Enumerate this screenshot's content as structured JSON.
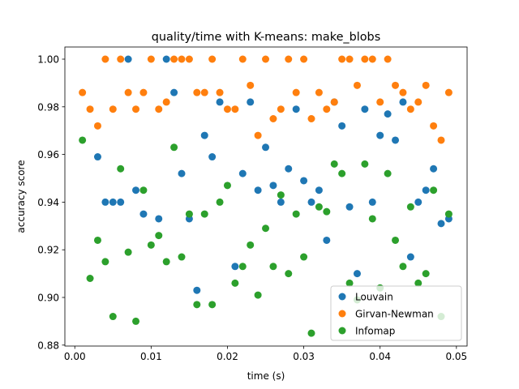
{
  "chart_data": {
    "type": "scatter",
    "title": "quality/time with K-means: make_blobs",
    "xlabel": "time (s)",
    "ylabel": "accuracy score",
    "xlim": [
      -0.0013,
      0.0514
    ],
    "ylim": [
      0.8796,
      1.0051
    ],
    "x_ticks": [
      0.0,
      0.01,
      0.02,
      0.03,
      0.04,
      0.05
    ],
    "x_tick_labels": [
      "0.00",
      "0.01",
      "0.02",
      "0.03",
      "0.04",
      "0.05"
    ],
    "y_ticks": [
      0.88,
      0.9,
      0.92,
      0.94,
      0.96,
      0.98,
      1.0
    ],
    "y_tick_labels": [
      "0.88",
      "0.90",
      "0.92",
      "0.94",
      "0.96",
      "0.98",
      "1.00"
    ],
    "grid": false,
    "legend_position": "lower-right",
    "series": [
      {
        "name": "Louvain",
        "color": "#1f77b4",
        "points": [
          [
            0.003,
            0.959
          ],
          [
            0.004,
            0.94
          ],
          [
            0.005,
            0.94
          ],
          [
            0.006,
            0.94
          ],
          [
            0.007,
            1.0
          ],
          [
            0.008,
            0.945
          ],
          [
            0.009,
            0.935
          ],
          [
            0.011,
            0.933
          ],
          [
            0.012,
            1.0
          ],
          [
            0.013,
            0.986
          ],
          [
            0.014,
            0.952
          ],
          [
            0.015,
            0.933
          ],
          [
            0.016,
            0.903
          ],
          [
            0.017,
            0.968
          ],
          [
            0.018,
            0.959
          ],
          [
            0.019,
            0.982
          ],
          [
            0.021,
            0.913
          ],
          [
            0.022,
            0.952
          ],
          [
            0.023,
            0.982
          ],
          [
            0.024,
            0.945
          ],
          [
            0.025,
            0.963
          ],
          [
            0.026,
            0.947
          ],
          [
            0.027,
            0.94
          ],
          [
            0.028,
            0.954
          ],
          [
            0.029,
            0.979
          ],
          [
            0.03,
            0.949
          ],
          [
            0.031,
            0.94
          ],
          [
            0.032,
            0.945
          ],
          [
            0.033,
            0.924
          ],
          [
            0.034,
            0.982
          ],
          [
            0.035,
            0.972
          ],
          [
            0.036,
            0.938
          ],
          [
            0.037,
            0.91
          ],
          [
            0.038,
            0.979
          ],
          [
            0.039,
            0.94
          ],
          [
            0.04,
            0.968
          ],
          [
            0.041,
            0.977
          ],
          [
            0.042,
            0.966
          ],
          [
            0.043,
            0.982
          ],
          [
            0.044,
            0.917
          ],
          [
            0.045,
            0.94
          ],
          [
            0.046,
            0.945
          ],
          [
            0.047,
            0.954
          ],
          [
            0.048,
            0.931
          ],
          [
            0.049,
            0.933
          ]
        ]
      },
      {
        "name": "Girvan-Newman",
        "color": "#ff7f0e",
        "points": [
          [
            0.001,
            0.986
          ],
          [
            0.002,
            0.979
          ],
          [
            0.003,
            0.972
          ],
          [
            0.004,
            1.0
          ],
          [
            0.005,
            0.979
          ],
          [
            0.006,
            1.0
          ],
          [
            0.007,
            0.986
          ],
          [
            0.008,
            0.979
          ],
          [
            0.009,
            0.986
          ],
          [
            0.01,
            1.0
          ],
          [
            0.011,
            0.979
          ],
          [
            0.012,
            0.982
          ],
          [
            0.013,
            1.0
          ],
          [
            0.014,
            1.0
          ],
          [
            0.015,
            1.0
          ],
          [
            0.016,
            0.986
          ],
          [
            0.017,
            0.986
          ],
          [
            0.018,
            1.0
          ],
          [
            0.019,
            0.986
          ],
          [
            0.02,
            0.979
          ],
          [
            0.021,
            0.979
          ],
          [
            0.022,
            1.0
          ],
          [
            0.023,
            0.989
          ],
          [
            0.024,
            0.968
          ],
          [
            0.025,
            1.0
          ],
          [
            0.026,
            0.975
          ],
          [
            0.027,
            0.979
          ],
          [
            0.028,
            1.0
          ],
          [
            0.029,
            0.986
          ],
          [
            0.03,
            1.0
          ],
          [
            0.031,
            0.975
          ],
          [
            0.032,
            0.986
          ],
          [
            0.033,
            0.979
          ],
          [
            0.034,
            0.982
          ],
          [
            0.035,
            1.0
          ],
          [
            0.036,
            1.0
          ],
          [
            0.037,
            0.989
          ],
          [
            0.038,
            1.0
          ],
          [
            0.039,
            1.0
          ],
          [
            0.04,
            0.982
          ],
          [
            0.041,
            1.0
          ],
          [
            0.042,
            0.989
          ],
          [
            0.043,
            0.986
          ],
          [
            0.044,
            0.979
          ],
          [
            0.045,
            0.982
          ],
          [
            0.046,
            0.989
          ],
          [
            0.047,
            0.972
          ],
          [
            0.048,
            0.966
          ],
          [
            0.049,
            0.986
          ]
        ]
      },
      {
        "name": "Infomap",
        "color": "#2ca02c",
        "points": [
          [
            0.001,
            0.966
          ],
          [
            0.002,
            0.908
          ],
          [
            0.003,
            0.924
          ],
          [
            0.004,
            0.915
          ],
          [
            0.005,
            0.892
          ],
          [
            0.006,
            0.954
          ],
          [
            0.007,
            0.919
          ],
          [
            0.008,
            0.89
          ],
          [
            0.009,
            0.945
          ],
          [
            0.01,
            0.922
          ],
          [
            0.011,
            0.926
          ],
          [
            0.012,
            0.915
          ],
          [
            0.013,
            0.963
          ],
          [
            0.014,
            0.917
          ],
          [
            0.015,
            0.935
          ],
          [
            0.016,
            0.897
          ],
          [
            0.017,
            0.935
          ],
          [
            0.018,
            0.897
          ],
          [
            0.019,
            0.94
          ],
          [
            0.02,
            0.947
          ],
          [
            0.021,
            0.906
          ],
          [
            0.022,
            0.913
          ],
          [
            0.023,
            0.922
          ],
          [
            0.024,
            0.901
          ],
          [
            0.025,
            0.929
          ],
          [
            0.026,
            0.913
          ],
          [
            0.027,
            0.943
          ],
          [
            0.028,
            0.91
          ],
          [
            0.029,
            0.935
          ],
          [
            0.03,
            0.917
          ],
          [
            0.031,
            0.885
          ],
          [
            0.032,
            0.938
          ],
          [
            0.033,
            0.936
          ],
          [
            0.034,
            0.956
          ],
          [
            0.035,
            0.952
          ],
          [
            0.036,
            0.906
          ],
          [
            0.037,
            0.899
          ],
          [
            0.038,
            0.956
          ],
          [
            0.039,
            0.933
          ],
          [
            0.04,
            0.904
          ],
          [
            0.041,
            0.952
          ],
          [
            0.042,
            0.924
          ],
          [
            0.043,
            0.913
          ],
          [
            0.044,
            0.938
          ],
          [
            0.045,
            0.906
          ],
          [
            0.046,
            0.91
          ],
          [
            0.047,
            0.945
          ],
          [
            0.048,
            0.892
          ],
          [
            0.049,
            0.935
          ]
        ]
      }
    ]
  }
}
